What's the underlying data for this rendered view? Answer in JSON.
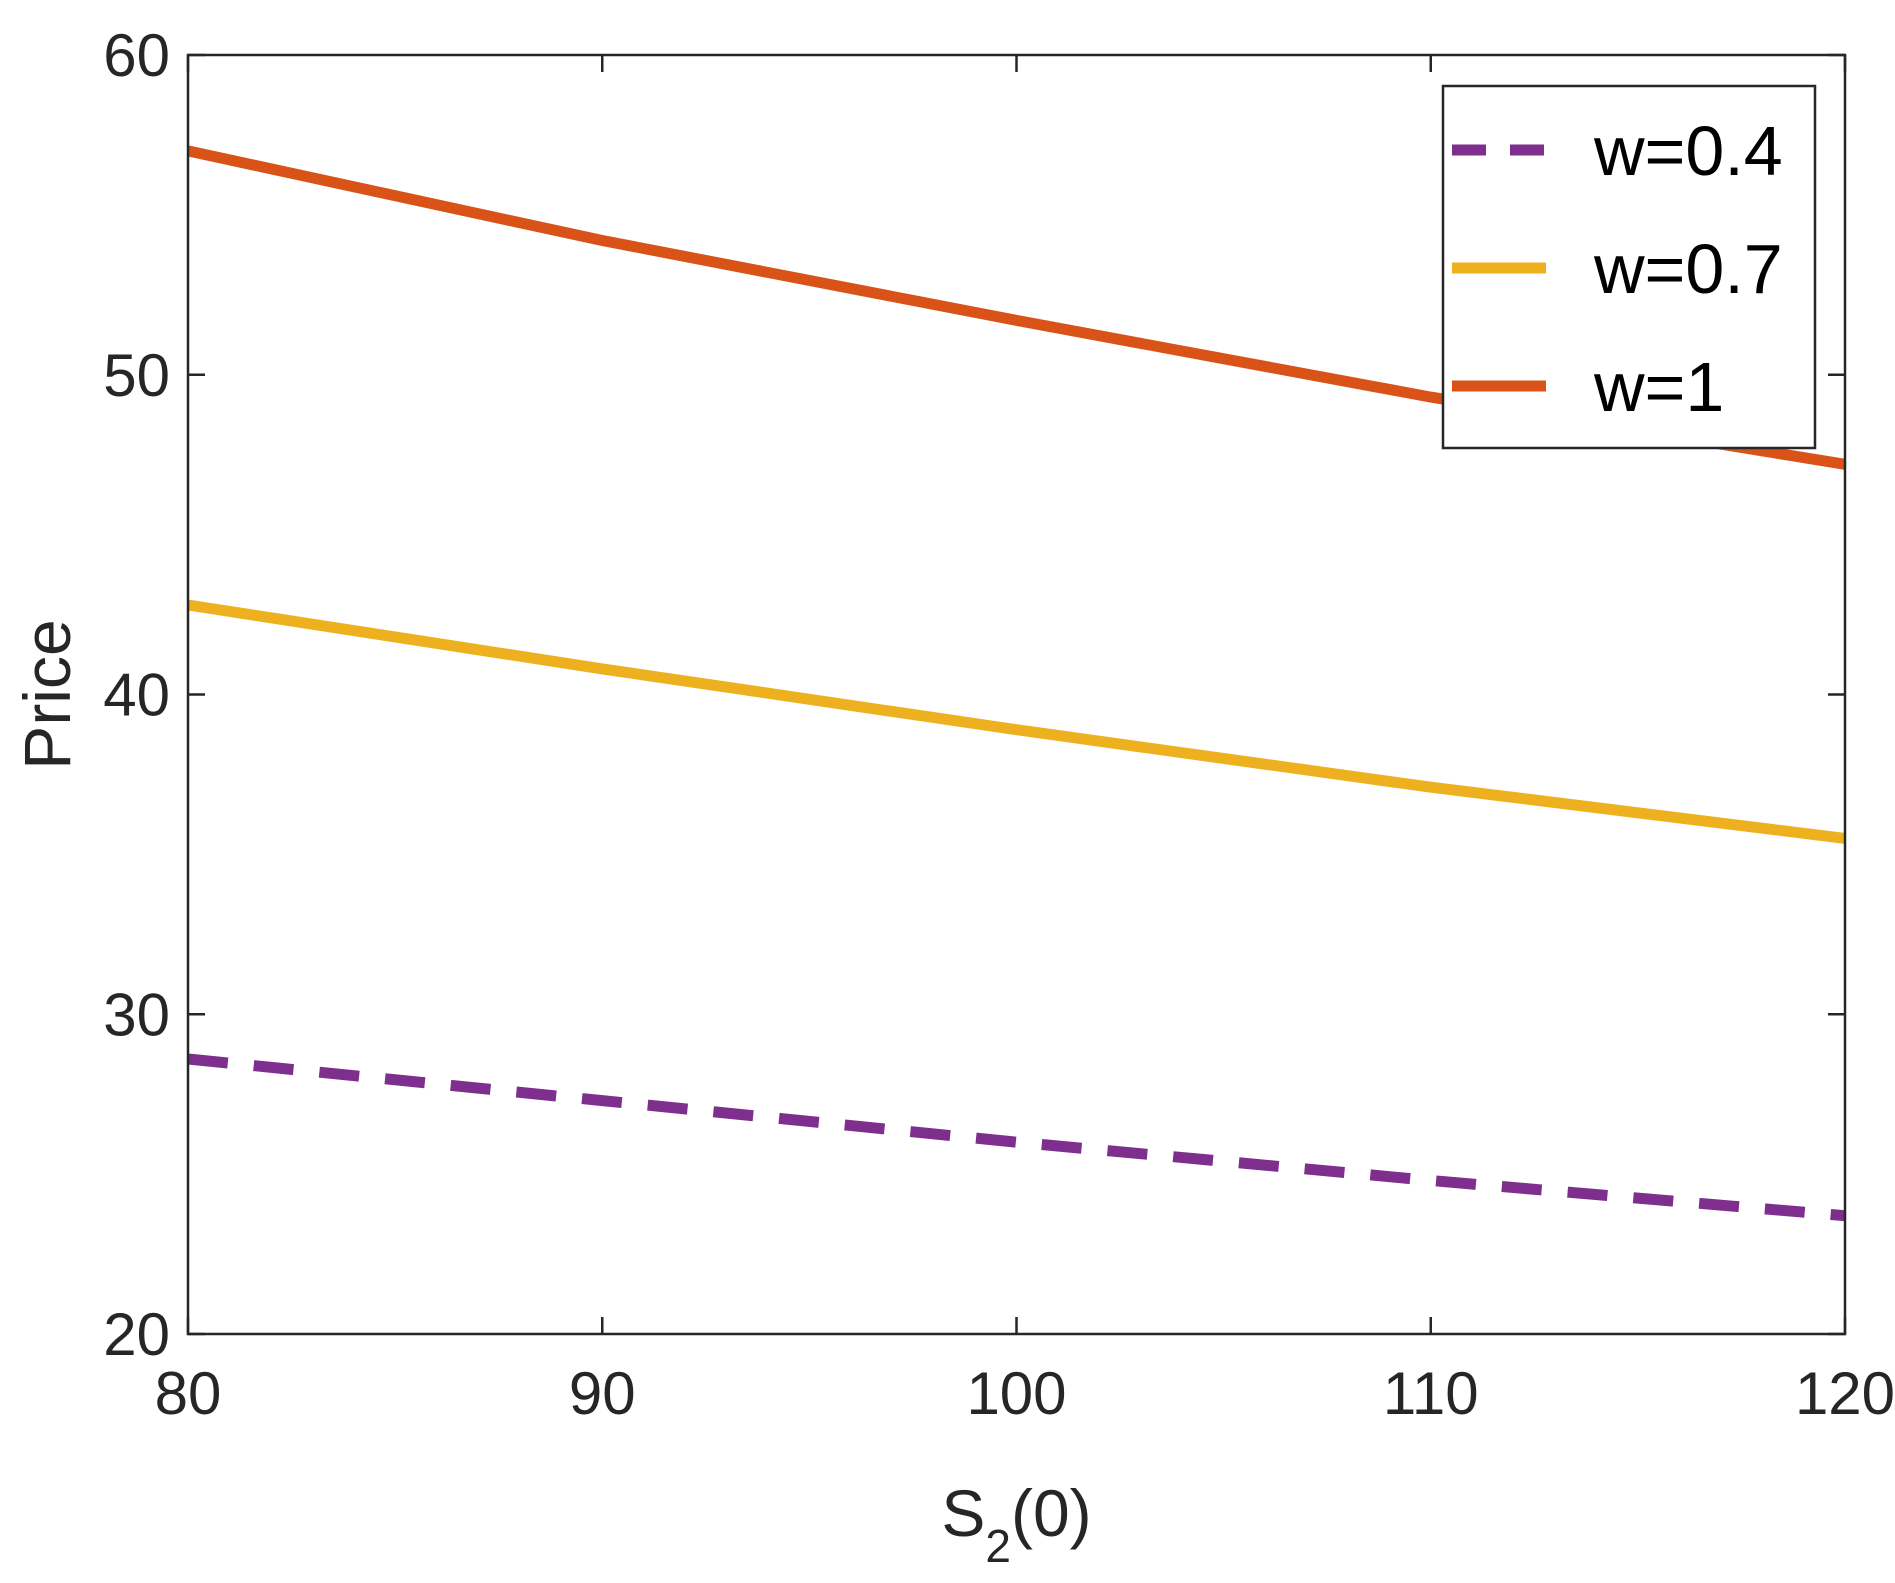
{
  "chart_data": {
    "type": "line",
    "title": "",
    "xlabel": "S",
    "xlabel_subscript": "2",
    "xlabel_suffix": "(0)",
    "ylabel": "Price",
    "xlim": [
      80,
      120
    ],
    "ylim": [
      20,
      60
    ],
    "xticks": [
      80,
      90,
      100,
      110,
      120
    ],
    "yticks": [
      20,
      30,
      40,
      50,
      60
    ],
    "grid": false,
    "legend_position": "top-right",
    "x": [
      80,
      90,
      100,
      110,
      120
    ],
    "series": [
      {
        "name": "w=0.4",
        "color": "#7E2F8E",
        "style": "dashed",
        "values": [
          28.6,
          27.3,
          26.0,
          24.8,
          23.7
        ]
      },
      {
        "name": "w=0.7",
        "color": "#EDB120",
        "style": "solid",
        "values": [
          42.8,
          40.8,
          38.9,
          37.1,
          35.5
        ]
      },
      {
        "name": "w=1",
        "color": "#D95319",
        "style": "solid",
        "values": [
          57.0,
          54.2,
          51.7,
          49.3,
          47.2
        ]
      }
    ]
  }
}
